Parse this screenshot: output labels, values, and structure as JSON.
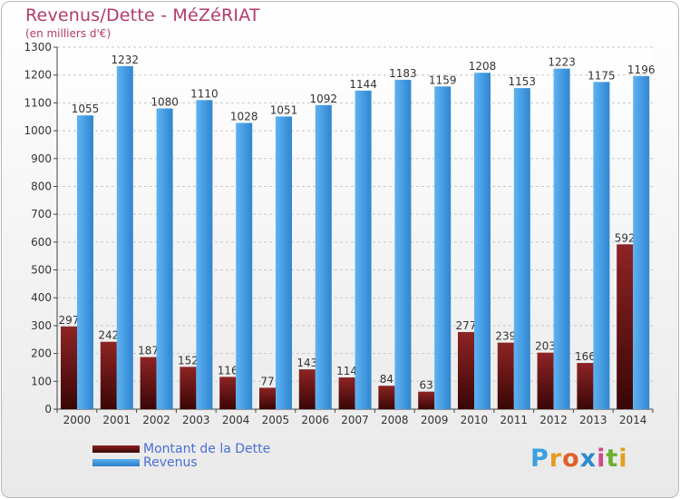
{
  "header": {
    "title": "Revenus/Dette - MéZéRIAT",
    "subtitle": "(en milliers d'€)"
  },
  "chart_data": {
    "type": "bar",
    "categories": [
      "2000",
      "2001",
      "2002",
      "2003",
      "2004",
      "2005",
      "2006",
      "2007",
      "2008",
      "2009",
      "2010",
      "2011",
      "2012",
      "2013",
      "2014"
    ],
    "series": [
      {
        "name": "Montant de la Dette",
        "color": "#7a1a1a",
        "values": [
          297,
          242,
          187,
          152,
          116,
          77,
          143,
          114,
          84,
          63,
          277,
          239,
          203,
          166,
          592
        ]
      },
      {
        "name": "Revenus",
        "color": "#3d9be6",
        "values": [
          1055,
          1232,
          1080,
          1110,
          1028,
          1051,
          1092,
          1144,
          1183,
          1159,
          1208,
          1153,
          1223,
          1175,
          1196
        ]
      }
    ],
    "ylim": [
      0,
      1300
    ],
    "yticks": [
      0,
      100,
      200,
      300,
      400,
      500,
      600,
      700,
      800,
      900,
      1000,
      1100,
      1200,
      1300
    ],
    "grid": true,
    "legend": "bottom-left"
  },
  "legend": {
    "debt_label": "Montant de la Dette",
    "revenue_label": "Revenus"
  },
  "logo": {
    "letters": [
      "P",
      "r",
      "o",
      "x",
      "i",
      "t",
      "i"
    ],
    "colors": [
      "#3aa0e0",
      "#e89a20",
      "#e0602a",
      "#2a8ad0",
      "#d04a8a",
      "#6ab030",
      "#e0a020"
    ]
  }
}
